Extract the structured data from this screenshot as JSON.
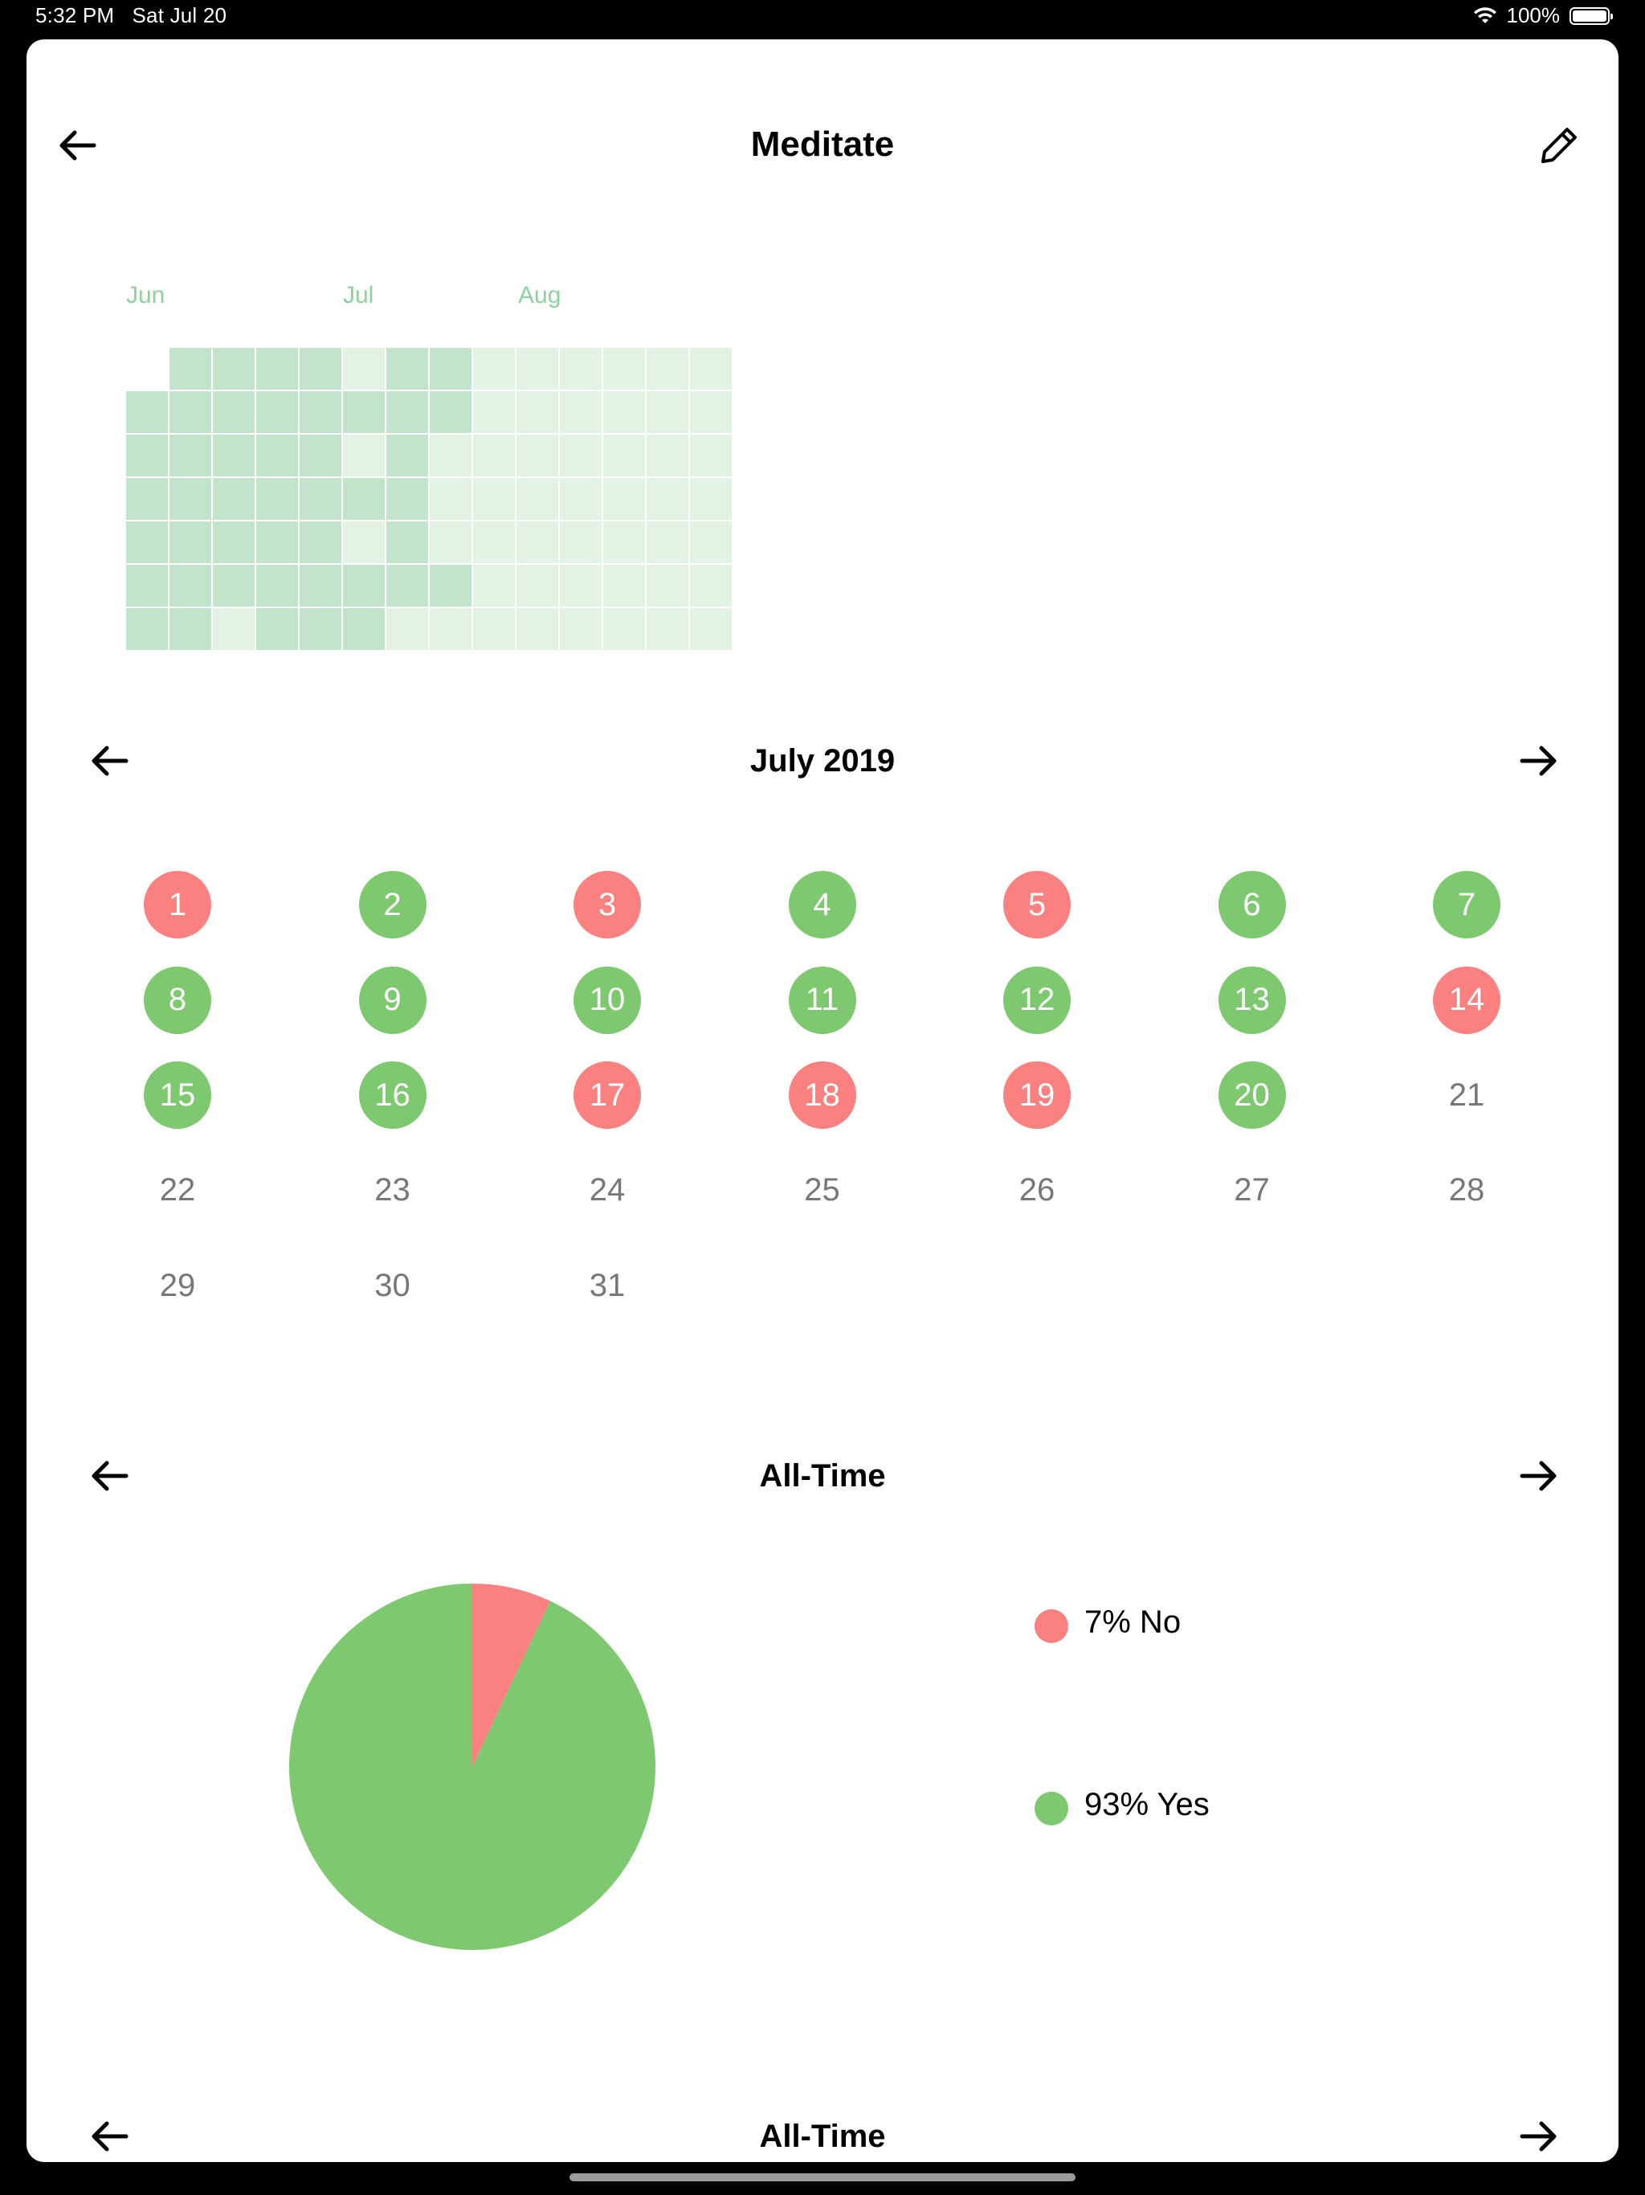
{
  "status_bar": {
    "time": "5:32 PM",
    "date": "Sat Jul 20",
    "battery": "100%"
  },
  "header": {
    "title": "Meditate",
    "back_icon": "arrow-left-icon",
    "edit_icon": "pencil-icon"
  },
  "heatmap": {
    "month_labels": [
      "Jun",
      "Jul",
      "Aug"
    ],
    "colors": {
      "strong": "#c2e4cb",
      "light": "#e2f3e6"
    },
    "columns": [
      [
        null,
        "S",
        "S",
        "S",
        "S",
        "S",
        "S"
      ],
      [
        "S",
        "S",
        "S",
        "S",
        "S",
        "S",
        "S"
      ],
      [
        "S",
        "S",
        "S",
        "S",
        "S",
        "S",
        "L"
      ],
      [
        "S",
        "S",
        "S",
        "S",
        "S",
        "S",
        "S"
      ],
      [
        "S",
        "S",
        "S",
        "S",
        "S",
        "S",
        "S"
      ],
      [
        "L",
        "S",
        "L",
        "S",
        "L",
        "S",
        "S"
      ],
      [
        "S",
        "S",
        "S",
        "S",
        "S",
        "S",
        "L"
      ],
      [
        "S",
        "S",
        "L",
        "L",
        "L",
        "S",
        "L"
      ],
      [
        "L",
        "L",
        "L",
        "L",
        "L",
        "L",
        "L"
      ],
      [
        "L",
        "L",
        "L",
        "L",
        "L",
        "L",
        "L"
      ],
      [
        "L",
        "L",
        "L",
        "L",
        "L",
        "L",
        "L"
      ],
      [
        "L",
        "L",
        "L",
        "L",
        "L",
        "L",
        "L"
      ],
      [
        "L",
        "L",
        "L",
        "L",
        "L",
        "L",
        "L"
      ],
      [
        "L",
        "L",
        "L",
        "L",
        "L",
        "L",
        "L"
      ]
    ]
  },
  "calendar": {
    "title": "July 2019",
    "prev_icon": "arrow-left-icon",
    "next_icon": "arrow-right-icon",
    "days": [
      {
        "label": "1",
        "status": "no"
      },
      {
        "label": "2",
        "status": "yes"
      },
      {
        "label": "3",
        "status": "no"
      },
      {
        "label": "4",
        "status": "yes"
      },
      {
        "label": "5",
        "status": "no"
      },
      {
        "label": "6",
        "status": "yes"
      },
      {
        "label": "7",
        "status": "yes"
      },
      {
        "label": "8",
        "status": "yes"
      },
      {
        "label": "9",
        "status": "yes"
      },
      {
        "label": "10",
        "status": "yes"
      },
      {
        "label": "11",
        "status": "yes"
      },
      {
        "label": "12",
        "status": "yes"
      },
      {
        "label": "13",
        "status": "yes"
      },
      {
        "label": "14",
        "status": "no"
      },
      {
        "label": "15",
        "status": "yes"
      },
      {
        "label": "16",
        "status": "yes"
      },
      {
        "label": "17",
        "status": "no"
      },
      {
        "label": "18",
        "status": "no"
      },
      {
        "label": "19",
        "status": "no"
      },
      {
        "label": "20",
        "status": "yes"
      },
      {
        "label": "21",
        "status": "none"
      },
      {
        "label": "22",
        "status": "none"
      },
      {
        "label": "23",
        "status": "none"
      },
      {
        "label": "24",
        "status": "none"
      },
      {
        "label": "25",
        "status": "none"
      },
      {
        "label": "26",
        "status": "none"
      },
      {
        "label": "27",
        "status": "none"
      },
      {
        "label": "28",
        "status": "none"
      },
      {
        "label": "29",
        "status": "none"
      },
      {
        "label": "30",
        "status": "none"
      },
      {
        "label": "31",
        "status": "none"
      }
    ]
  },
  "pie_section": {
    "title": "All-Time",
    "colors": {
      "no": "#fb8080",
      "yes": "#7ec96f"
    },
    "chart_data": {
      "type": "pie",
      "slices": [
        {
          "name": "No",
          "value": 7,
          "label": "7% No"
        },
        {
          "name": "Yes",
          "value": 93,
          "label": "93% Yes"
        }
      ]
    }
  },
  "next_section": {
    "title": "All-Time"
  }
}
